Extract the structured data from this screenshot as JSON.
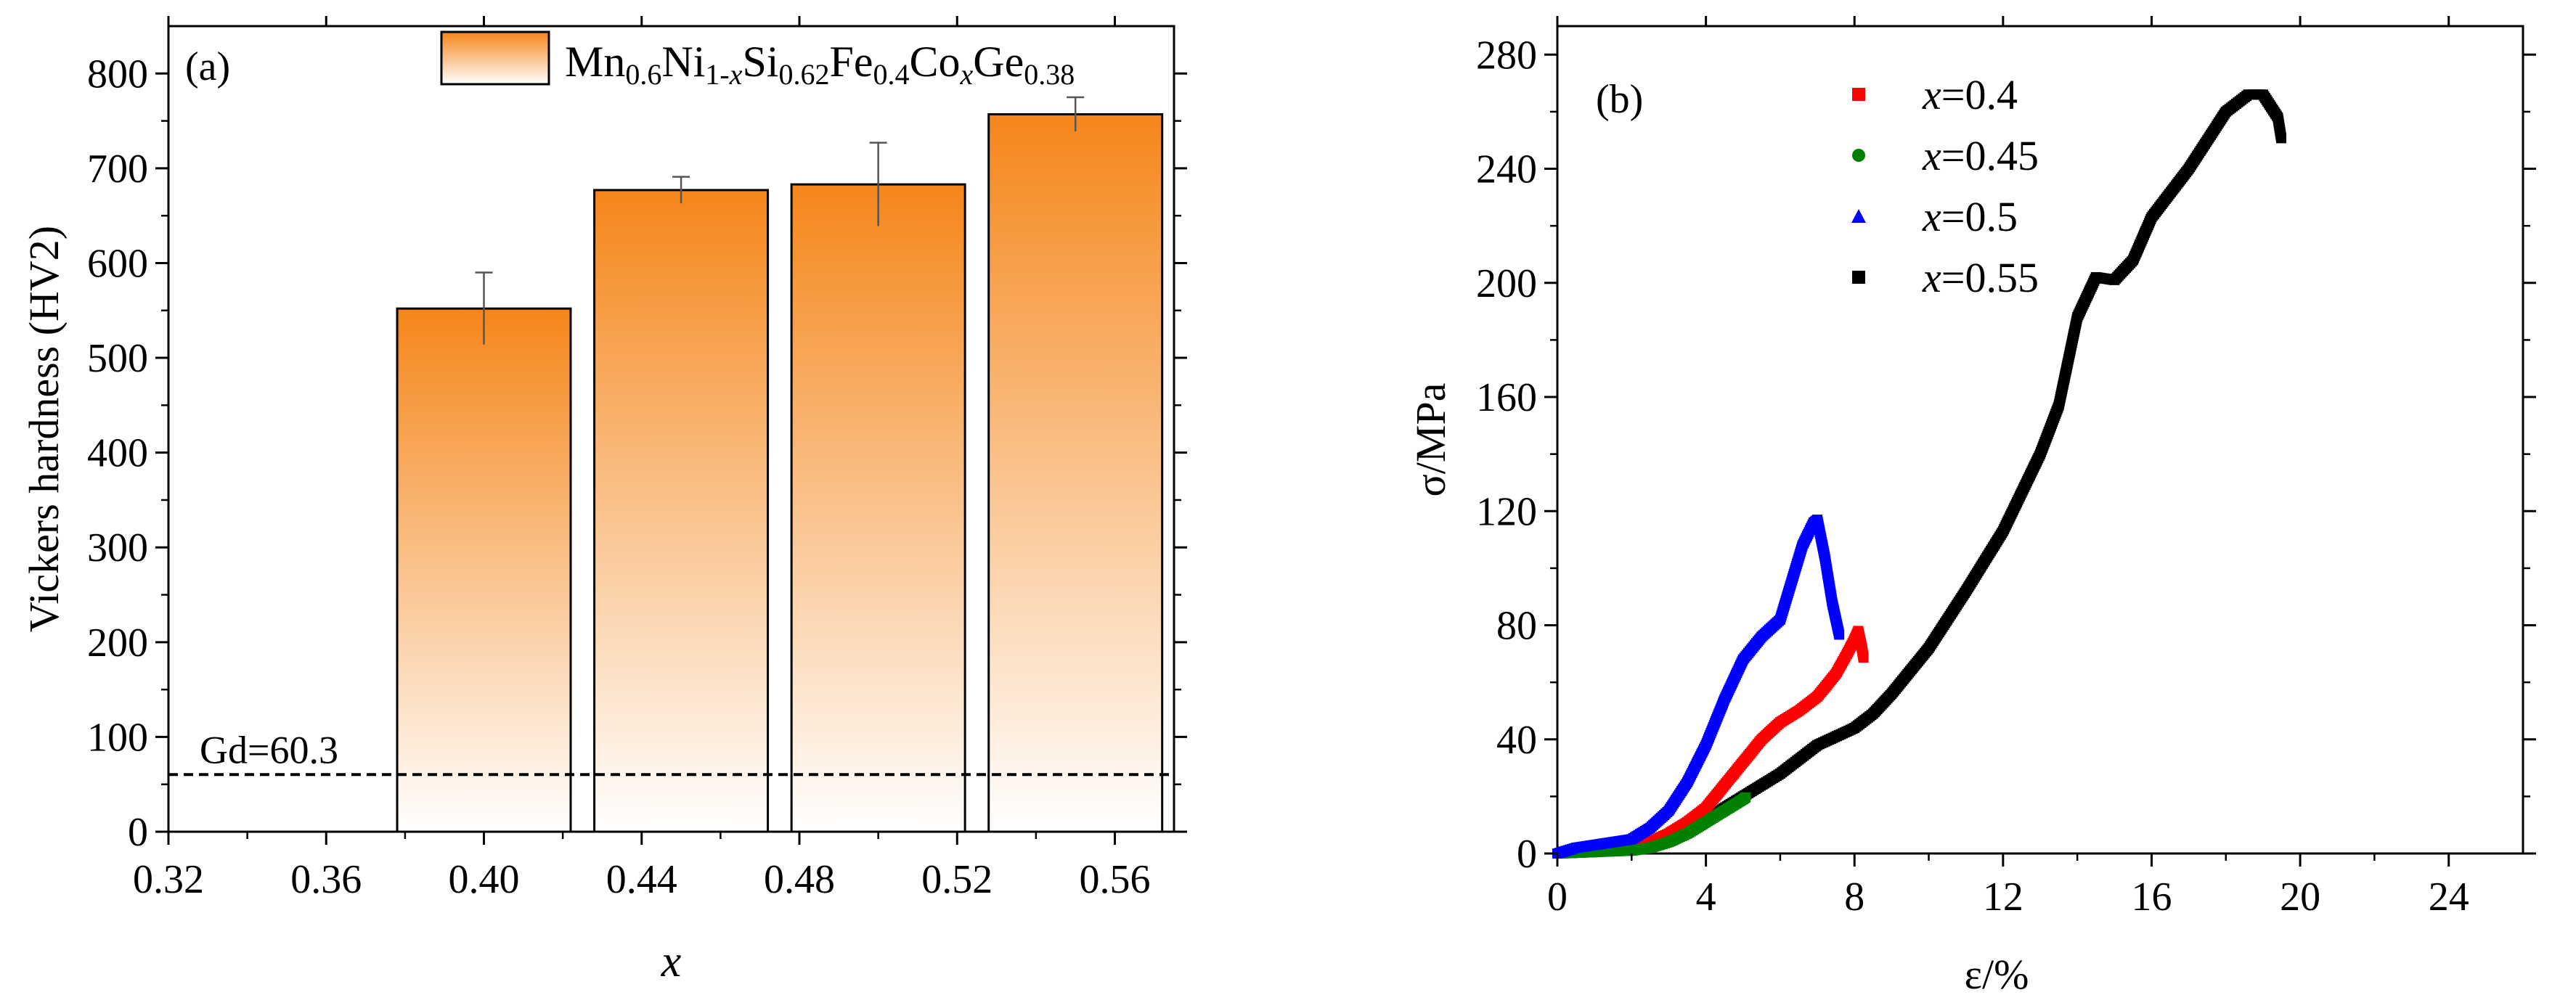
{
  "chart_data": [
    {
      "panel": "(a)",
      "type": "bar",
      "xlabel": "x",
      "ylabel": "Vickers hardness (HV2)",
      "xlim": [
        0.32,
        0.575
      ],
      "ylim": [
        0,
        850
      ],
      "xticks": [
        "0.32",
        "0.36",
        "0.40",
        "0.44",
        "0.48",
        "0.52",
        "0.56"
      ],
      "yticks": [
        "0",
        "100",
        "200",
        "300",
        "400",
        "500",
        "600",
        "700",
        "800"
      ],
      "bar_width": 0.044,
      "bars": [
        {
          "x": 0.4,
          "value": 552,
          "error": 38
        },
        {
          "x": 0.45,
          "value": 677,
          "error": 14
        },
        {
          "x": 0.5,
          "value": 683,
          "error": 44
        },
        {
          "x": 0.55,
          "value": 757,
          "error": 18
        }
      ],
      "reference_line": {
        "value": 60.3,
        "label": "Gd=60.3"
      },
      "legend": {
        "position": "top-center",
        "parts": [
          {
            "t": "Mn",
            "s": "n"
          },
          {
            "t": "0.6",
            "s": "sub"
          },
          {
            "t": "Ni",
            "s": "n"
          },
          {
            "t": "1-",
            "s": "sub"
          },
          {
            "t": "x",
            "s": "subi"
          },
          {
            "t": "Si",
            "s": "n"
          },
          {
            "t": "0.62",
            "s": "sub"
          },
          {
            "t": "Fe",
            "s": "n"
          },
          {
            "t": "0.4",
            "s": "sub"
          },
          {
            "t": "Co",
            "s": "n"
          },
          {
            "t": "x",
            "s": "subi"
          },
          {
            "t": "Ge",
            "s": "n"
          },
          {
            "t": "0.38",
            "s": "sub"
          }
        ]
      },
      "colors": {
        "bar_top": "#f5861a",
        "bar_bottom": "#ffffff",
        "outline": "#000000"
      }
    },
    {
      "panel": "(b)",
      "type": "scatter",
      "xlabel": "ε/%",
      "ylabel": "σ/MPa",
      "xlim": [
        0,
        26
      ],
      "ylim": [
        0,
        290
      ],
      "xticks": [
        "0",
        "4",
        "8",
        "12",
        "16",
        "20",
        "24"
      ],
      "yticks": [
        "0",
        "40",
        "80",
        "120",
        "160",
        "200",
        "240",
        "280"
      ],
      "legend_position": "top-center",
      "series": [
        {
          "name": "x=0.4",
          "var": "x",
          "value": "=0.4",
          "color": "#ff0000",
          "marker": "square",
          "points": [
            [
              0,
              0
            ],
            [
              1,
              1
            ],
            [
              2,
              2
            ],
            [
              2.5,
              4
            ],
            [
              3,
              7
            ],
            [
              3.5,
              11
            ],
            [
              4,
              16
            ],
            [
              4.5,
              24
            ],
            [
              5,
              32
            ],
            [
              5.5,
              40
            ],
            [
              6,
              46
            ],
            [
              6.5,
              50
            ],
            [
              7,
              55
            ],
            [
              7.5,
              63
            ],
            [
              7.8,
              70
            ],
            [
              8,
              75
            ],
            [
              8.1,
              78
            ],
            [
              8.2,
              72
            ],
            [
              8.25,
              68
            ]
          ]
        },
        {
          "name": "x=0.45",
          "var": "x",
          "value": "=0.45",
          "color": "#008000",
          "marker": "circle",
          "points": [
            [
              0,
              0
            ],
            [
              1,
              0.5
            ],
            [
              2,
              1
            ],
            [
              2.5,
              2
            ],
            [
              3,
              4
            ],
            [
              3.5,
              7
            ],
            [
              4,
              11
            ],
            [
              4.5,
              15
            ],
            [
              5,
              19
            ],
            [
              5.1,
              20
            ]
          ]
        },
        {
          "name": "x=0.5",
          "var": "x",
          "value": "=0.5",
          "color": "#0000ff",
          "marker": "triangle",
          "points": [
            [
              0,
              0
            ],
            [
              0.5,
              2
            ],
            [
              1,
              3
            ],
            [
              1.5,
              4
            ],
            [
              2,
              5
            ],
            [
              2.5,
              9
            ],
            [
              3,
              15
            ],
            [
              3.5,
              25
            ],
            [
              4,
              38
            ],
            [
              4.5,
              54
            ],
            [
              5,
              68
            ],
            [
              5.5,
              76
            ],
            [
              6,
              82
            ],
            [
              6.3,
              95
            ],
            [
              6.6,
              108
            ],
            [
              6.9,
              116
            ],
            [
              7,
              117
            ],
            [
              7.2,
              104
            ],
            [
              7.4,
              88
            ],
            [
              7.6,
              76
            ]
          ]
        },
        {
          "name": "x=0.55",
          "var": "x",
          "value": "=0.55",
          "color": "#000000",
          "marker": "square",
          "points": [
            [
              0,
              0
            ],
            [
              1,
              0.5
            ],
            [
              2,
              1.5
            ],
            [
              3,
              5
            ],
            [
              4,
              12
            ],
            [
              5,
              20
            ],
            [
              6,
              28
            ],
            [
              6.5,
              33
            ],
            [
              7,
              38
            ],
            [
              8,
              44
            ],
            [
              8.5,
              49
            ],
            [
              9,
              56
            ],
            [
              10,
              72
            ],
            [
              11,
              92
            ],
            [
              12,
              113
            ],
            [
              13,
              140
            ],
            [
              13.5,
              157
            ],
            [
              14,
              188
            ],
            [
              14.5,
              202
            ],
            [
              15,
              201
            ],
            [
              15.5,
              208
            ],
            [
              16,
              223
            ],
            [
              17,
              240
            ],
            [
              18,
              260
            ],
            [
              18.6,
              266
            ],
            [
              19,
              266
            ],
            [
              19.4,
              258
            ],
            [
              19.5,
              250
            ]
          ]
        }
      ]
    }
  ]
}
